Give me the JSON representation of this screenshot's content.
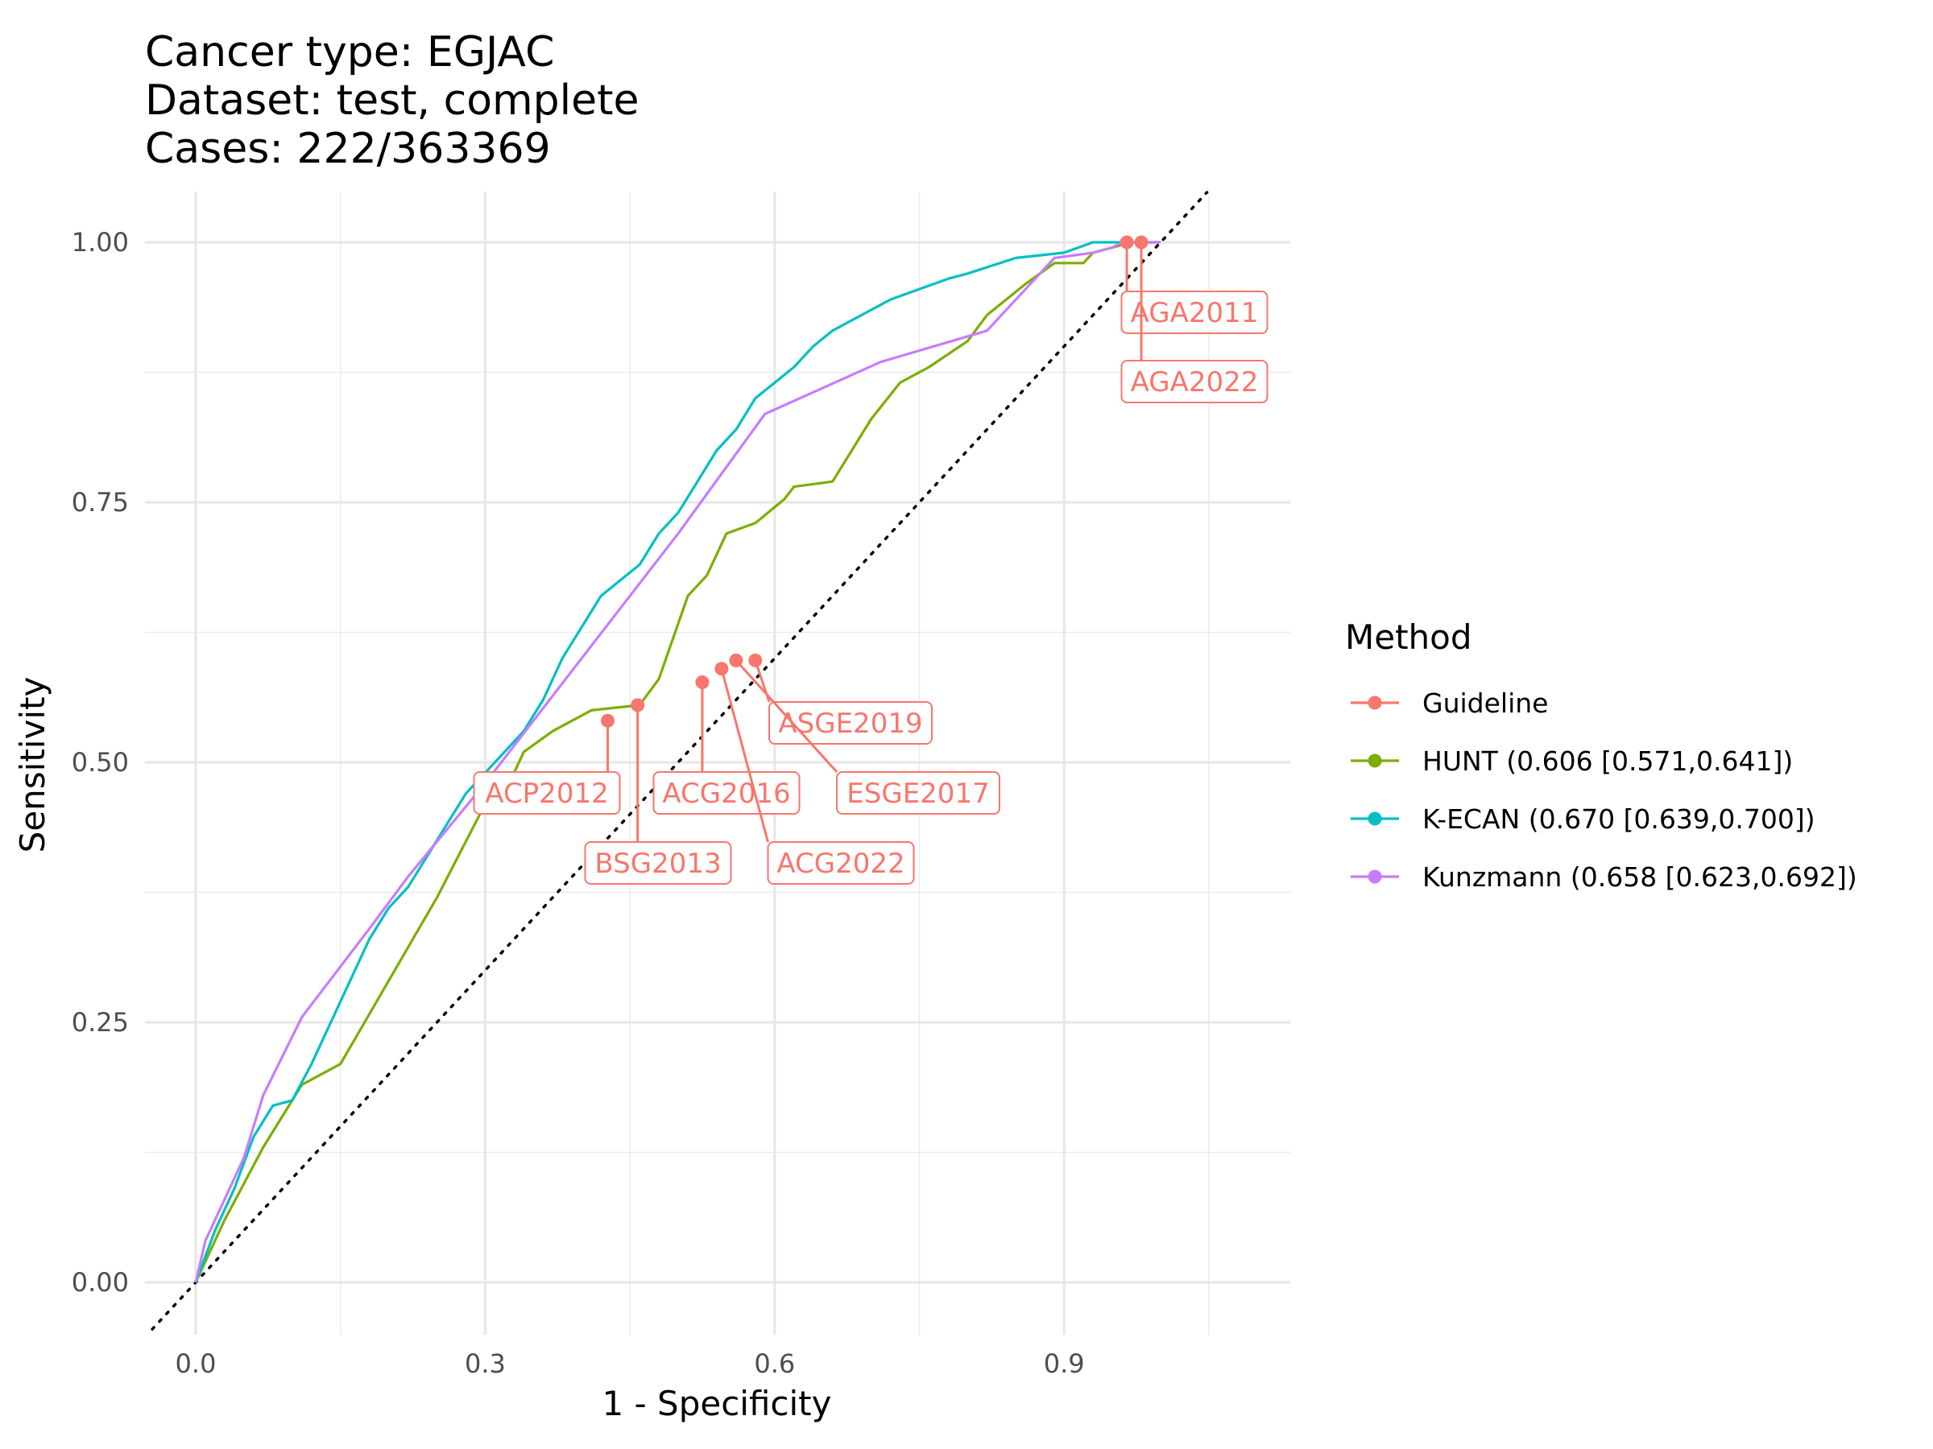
{
  "chart_data": {
    "type": "line",
    "title_lines": [
      "Cancer type: EGJAC",
      "Dataset: test, complete",
      "Cases: 222/363369"
    ],
    "xlabel": "1 - Specificity",
    "ylabel": "Sensitivity",
    "xlim": [
      -0.05,
      1.13
    ],
    "ylim": [
      -0.05,
      1.05
    ],
    "x_ticks": [
      0.0,
      0.3,
      0.6,
      0.9
    ],
    "x_tick_labels": [
      "0.0",
      "0.3",
      "0.6",
      "0.9"
    ],
    "y_ticks": [
      0.0,
      0.25,
      0.5,
      0.75,
      1.0
    ],
    "y_tick_labels": [
      "0.00",
      "0.25",
      "0.50",
      "0.75",
      "1.00"
    ],
    "grid": true,
    "reference_line": "diagonal dotted",
    "legend": {
      "title": "Method",
      "position": "right",
      "entries": [
        {
          "label": "Guideline",
          "color": "#F8766D"
        },
        {
          "label": "HUNT (0.606 [0.571,0.641])",
          "color": "#7CAE00"
        },
        {
          "label": "K-ECAN (0.670 [0.639,0.700])",
          "color": "#00BFC4"
        },
        {
          "label": "Kunzmann (0.658 [0.623,0.692])",
          "color": "#C77CFF"
        }
      ]
    },
    "series": [
      {
        "name": "HUNT (0.606 [0.571,0.641])",
        "color": "#7CAE00",
        "points": [
          [
            0,
            0
          ],
          [
            0.03,
            0.06
          ],
          [
            0.07,
            0.13
          ],
          [
            0.11,
            0.19
          ],
          [
            0.15,
            0.21
          ],
          [
            0.2,
            0.29
          ],
          [
            0.25,
            0.37
          ],
          [
            0.3,
            0.46
          ],
          [
            0.33,
            0.49
          ],
          [
            0.34,
            0.51
          ],
          [
            0.37,
            0.53
          ],
          [
            0.41,
            0.55
          ],
          [
            0.44,
            0.553
          ],
          [
            0.46,
            0.555
          ],
          [
            0.48,
            0.58
          ],
          [
            0.51,
            0.66
          ],
          [
            0.53,
            0.68
          ],
          [
            0.55,
            0.72
          ],
          [
            0.58,
            0.73
          ],
          [
            0.61,
            0.753
          ],
          [
            0.62,
            0.765
          ],
          [
            0.66,
            0.77
          ],
          [
            0.7,
            0.83
          ],
          [
            0.73,
            0.865
          ],
          [
            0.76,
            0.88
          ],
          [
            0.8,
            0.905
          ],
          [
            0.82,
            0.93
          ],
          [
            0.86,
            0.96
          ],
          [
            0.89,
            0.98
          ],
          [
            0.92,
            0.98
          ],
          [
            0.93,
            0.99
          ],
          [
            0.97,
            1.0
          ],
          [
            1.0,
            1.0
          ]
        ]
      },
      {
        "name": "K-ECAN (0.670 [0.639,0.700])",
        "color": "#00BFC4",
        "points": [
          [
            0,
            0
          ],
          [
            0.02,
            0.05
          ],
          [
            0.04,
            0.09
          ],
          [
            0.06,
            0.14
          ],
          [
            0.08,
            0.17
          ],
          [
            0.1,
            0.175
          ],
          [
            0.12,
            0.21
          ],
          [
            0.14,
            0.25
          ],
          [
            0.16,
            0.29
          ],
          [
            0.18,
            0.33
          ],
          [
            0.2,
            0.36
          ],
          [
            0.22,
            0.38
          ],
          [
            0.24,
            0.41
          ],
          [
            0.26,
            0.44
          ],
          [
            0.28,
            0.47
          ],
          [
            0.3,
            0.49
          ],
          [
            0.32,
            0.51
          ],
          [
            0.34,
            0.53
          ],
          [
            0.36,
            0.56
          ],
          [
            0.38,
            0.6
          ],
          [
            0.4,
            0.63
          ],
          [
            0.42,
            0.66
          ],
          [
            0.44,
            0.675
          ],
          [
            0.46,
            0.69
          ],
          [
            0.48,
            0.72
          ],
          [
            0.5,
            0.74
          ],
          [
            0.52,
            0.77
          ],
          [
            0.54,
            0.8
          ],
          [
            0.56,
            0.82
          ],
          [
            0.58,
            0.85
          ],
          [
            0.6,
            0.865
          ],
          [
            0.62,
            0.88
          ],
          [
            0.64,
            0.9
          ],
          [
            0.66,
            0.915
          ],
          [
            0.68,
            0.925
          ],
          [
            0.7,
            0.935
          ],
          [
            0.72,
            0.945
          ],
          [
            0.75,
            0.955
          ],
          [
            0.78,
            0.965
          ],
          [
            0.8,
            0.97
          ],
          [
            0.85,
            0.985
          ],
          [
            0.9,
            0.99
          ],
          [
            0.93,
            1.0
          ],
          [
            1.0,
            1.0
          ]
        ]
      },
      {
        "name": "Kunzmann (0.658 [0.623,0.692])",
        "color": "#C77CFF",
        "points": [
          [
            0,
            0
          ],
          [
            0.01,
            0.04
          ],
          [
            0.05,
            0.12
          ],
          [
            0.07,
            0.18
          ],
          [
            0.11,
            0.255
          ],
          [
            0.18,
            0.34
          ],
          [
            0.22,
            0.39
          ],
          [
            0.3,
            0.48
          ],
          [
            0.4,
            0.6
          ],
          [
            0.5,
            0.72
          ],
          [
            0.59,
            0.835
          ],
          [
            0.71,
            0.885
          ],
          [
            0.82,
            0.915
          ],
          [
            0.89,
            0.985
          ],
          [
            0.93,
            0.99
          ],
          [
            0.95,
            0.995
          ],
          [
            0.96,
            1.0
          ],
          [
            1.0,
            1.0
          ]
        ]
      }
    ],
    "guideline_points": [
      {
        "label": "AGA2011",
        "x": 0.965,
        "y": 1.0
      },
      {
        "label": "AGA2022",
        "x": 0.98,
        "y": 1.0
      },
      {
        "label": "ASGE2019",
        "x": 0.58,
        "y": 0.598
      },
      {
        "label": "ESGE2017",
        "x": 0.56,
        "y": 0.598
      },
      {
        "label": "ACG2016",
        "x": 0.525,
        "y": 0.577
      },
      {
        "label": "ACG2022",
        "x": 0.545,
        "y": 0.59
      },
      {
        "label": "ACP2012",
        "x": 0.427,
        "y": 0.54
      },
      {
        "label": "BSG2013",
        "x": 0.458,
        "y": 0.555
      }
    ]
  }
}
